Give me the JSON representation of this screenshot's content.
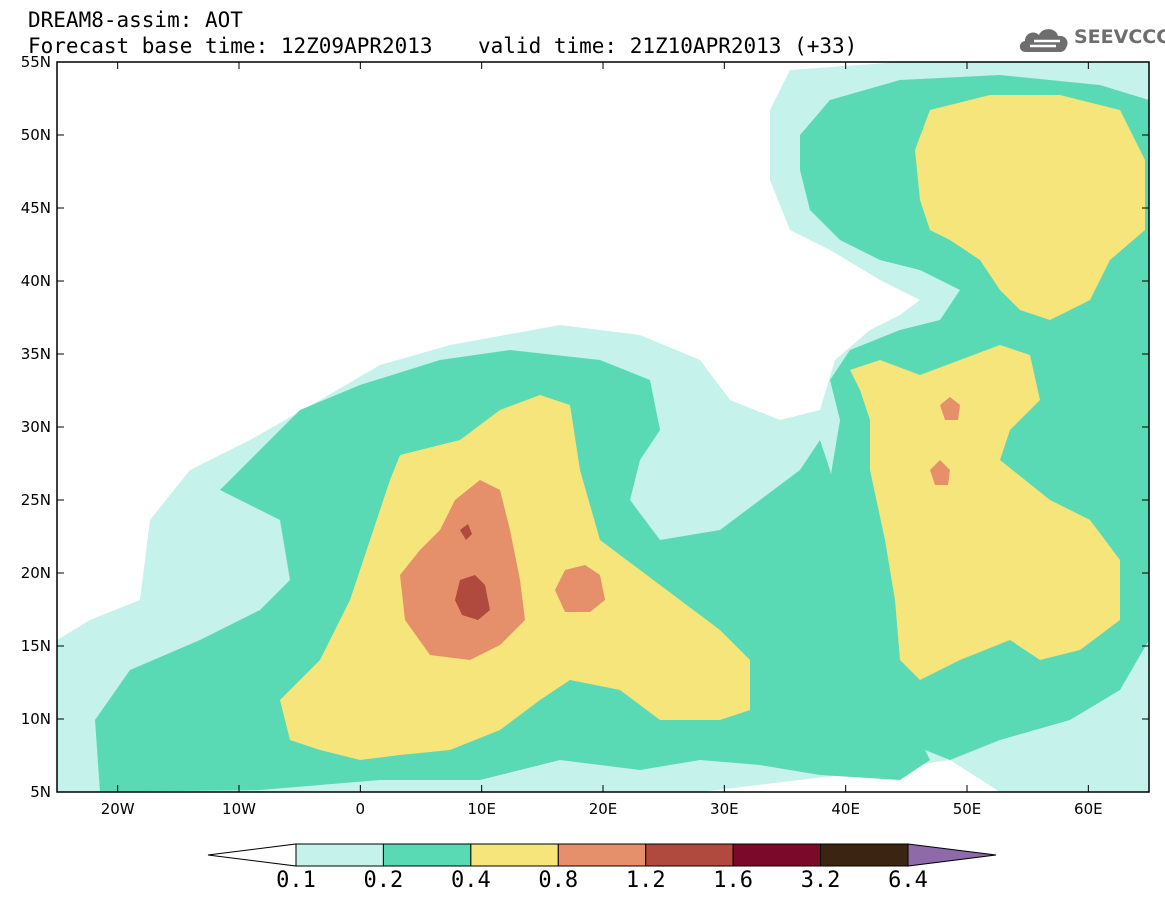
{
  "header": {
    "line1": "DREAM8-assim: AOT",
    "line2": "Forecast base time: 12Z09APR2013",
    "valid": "valid time: 21Z10APR2013 (+33)"
  },
  "logo": {
    "text": "SEEVCCC",
    "icon": "cloud-icon"
  },
  "map": {
    "lat_labels": [
      "55N",
      "50N",
      "45N",
      "40N",
      "35N",
      "30N",
      "25N",
      "20N",
      "15N",
      "10N",
      "5N"
    ],
    "lon_labels": [
      "20W",
      "10W",
      "0",
      "10E",
      "20E",
      "30E",
      "40E",
      "50E",
      "60E"
    ],
    "lat_range": [
      5,
      55
    ],
    "lon_range": [
      -25,
      65
    ]
  },
  "colorbar": {
    "levels": [
      "0.1",
      "0.2",
      "0.4",
      "0.8",
      "1.2",
      "1.6",
      "3.2",
      "6.4"
    ],
    "colors": [
      "#ffffff",
      "#c5f2ea",
      "#5ad9b5",
      "#f5e57a",
      "#e5906a",
      "#b04a3f",
      "#7b0a2a",
      "#3b2412",
      "#8e6aaa"
    ]
  }
}
